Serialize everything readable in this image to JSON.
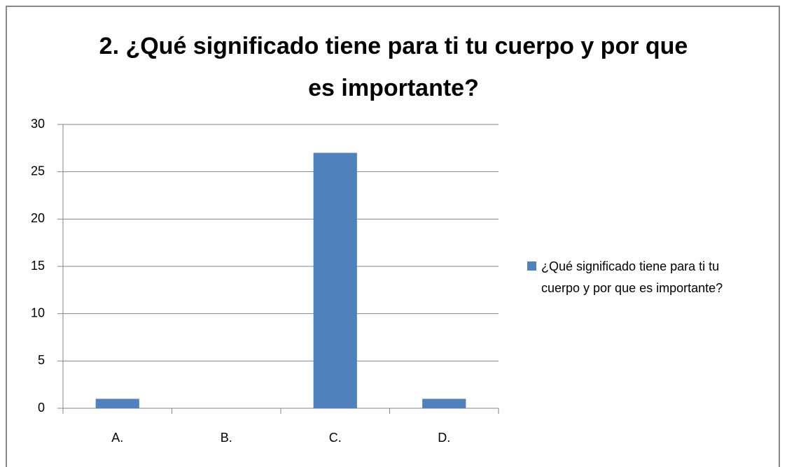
{
  "chart_data": {
    "type": "bar",
    "title": "2. ¿Qué significado tiene para ti tu cuerpo y por que es importante?",
    "categories": [
      "A.",
      "B.",
      "C.",
      "D."
    ],
    "series": [
      {
        "name": "¿Qué significado tiene para ti tu cuerpo y por que es importante?",
        "color": "#4f81bd",
        "values": [
          1,
          0,
          27,
          1
        ]
      }
    ],
    "ylim": [
      0,
      30
    ],
    "yticks": [
      0,
      5,
      10,
      15,
      20,
      25,
      30
    ],
    "grid": true,
    "legend": "right"
  }
}
